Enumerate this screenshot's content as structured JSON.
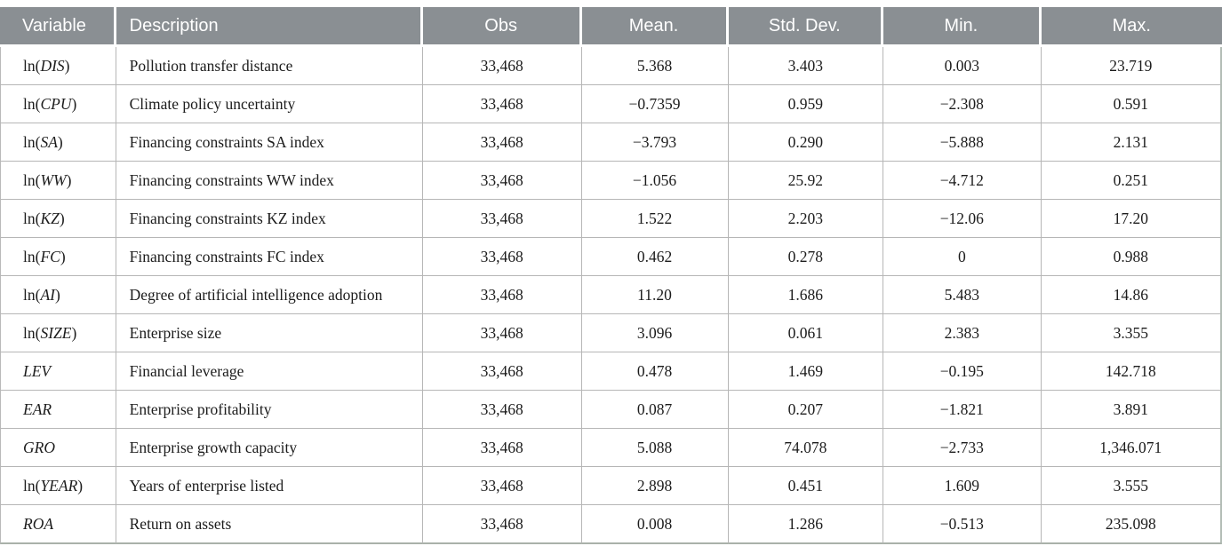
{
  "colors": {
    "header_background": "#8a8f93",
    "header_text": "#ffffff",
    "grid_border": "#b6b6b6",
    "outer_bottom_border": "#a9b1a9",
    "body_text": "#1c1c1c"
  },
  "table": {
    "columns": [
      "Variable",
      "Description",
      "Obs",
      "Mean.",
      "Std. Dev.",
      "Min.",
      "Max."
    ],
    "rows": [
      {
        "variable": {
          "pre": "ln(",
          "italic": "DIS",
          "post": ")"
        },
        "description": "Pollution transfer distance",
        "obs": "33,468",
        "mean": "5.368",
        "std_dev": "3.403",
        "min": "0.003",
        "max": "23.719"
      },
      {
        "variable": {
          "pre": "ln(",
          "italic": "CPU",
          "post": ")"
        },
        "description": "Climate policy uncertainty",
        "obs": "33,468",
        "mean": "−0.7359",
        "std_dev": "0.959",
        "min": "−2.308",
        "max": "0.591"
      },
      {
        "variable": {
          "pre": "ln(",
          "italic": "SA",
          "post": ")"
        },
        "description": "Financing constraints SA index",
        "obs": "33,468",
        "mean": "−3.793",
        "std_dev": "0.290",
        "min": "−5.888",
        "max": "2.131"
      },
      {
        "variable": {
          "pre": "ln(",
          "italic": "WW",
          "post": ")"
        },
        "description": "Financing constraints WW index",
        "obs": "33,468",
        "mean": "−1.056",
        "std_dev": "25.92",
        "min": "−4.712",
        "max": "0.251"
      },
      {
        "variable": {
          "pre": "ln(",
          "italic": "KZ",
          "post": ")"
        },
        "description": "Financing constraints KZ index",
        "obs": "33,468",
        "mean": "1.522",
        "std_dev": "2.203",
        "min": "−12.06",
        "max": "17.20"
      },
      {
        "variable": {
          "pre": "ln(",
          "italic": "FC",
          "post": ")"
        },
        "description": "Financing constraints FC index",
        "obs": "33,468",
        "mean": "0.462",
        "std_dev": "0.278",
        "min": "0",
        "max": "0.988"
      },
      {
        "variable": {
          "pre": "ln(",
          "italic": "AI",
          "post": ")"
        },
        "description": "Degree of artificial intelligence adoption",
        "obs": "33,468",
        "mean": "11.20",
        "std_dev": "1.686",
        "min": "5.483",
        "max": "14.86"
      },
      {
        "variable": {
          "pre": "ln(",
          "italic": "SIZE",
          "post": ")"
        },
        "description": "Enterprise size",
        "obs": "33,468",
        "mean": "3.096",
        "std_dev": "0.061",
        "min": "2.383",
        "max": "3.355"
      },
      {
        "variable": {
          "pre": "",
          "italic": "LEV",
          "post": ""
        },
        "description": "Financial leverage",
        "obs": "33,468",
        "mean": "0.478",
        "std_dev": "1.469",
        "min": "−0.195",
        "max": "142.718"
      },
      {
        "variable": {
          "pre": "",
          "italic": "EAR",
          "post": ""
        },
        "description": "Enterprise profitability",
        "obs": "33,468",
        "mean": "0.087",
        "std_dev": "0.207",
        "min": "−1.821",
        "max": "3.891"
      },
      {
        "variable": {
          "pre": "",
          "italic": "GRO",
          "post": ""
        },
        "description": "Enterprise growth capacity",
        "obs": "33,468",
        "mean": "5.088",
        "std_dev": "74.078",
        "min": "−2.733",
        "max": "1,346.071"
      },
      {
        "variable": {
          "pre": "ln(",
          "italic": "YEAR",
          "post": ")"
        },
        "description": "Years of enterprise listed",
        "obs": "33,468",
        "mean": "2.898",
        "std_dev": "0.451",
        "min": "1.609",
        "max": "3.555"
      },
      {
        "variable": {
          "pre": "",
          "italic": "ROA",
          "post": ""
        },
        "description": "Return on assets",
        "obs": "33,468",
        "mean": "0.008",
        "std_dev": "1.286",
        "min": "−0.513",
        "max": "235.098"
      }
    ]
  }
}
